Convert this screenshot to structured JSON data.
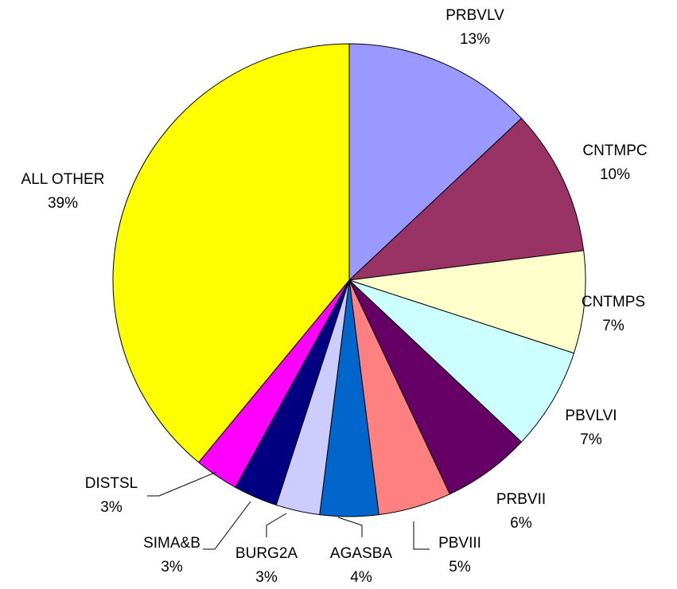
{
  "chart_data": {
    "type": "pie",
    "categories": [
      "PRBVLV",
      "CNTMPC",
      "CNTMPS",
      "PBVLVI",
      "PRBVII",
      "PBVIII",
      "AGASBA",
      "BURG2A",
      "SIMA&B",
      "DISTSL",
      "ALL OTHER"
    ],
    "values": [
      13,
      10,
      7,
      7,
      6,
      5,
      4,
      3,
      3,
      3,
      39
    ],
    "value_labels": [
      "13%",
      "10%",
      "7%",
      "7%",
      "6%",
      "5%",
      "4%",
      "3%",
      "3%",
      "3%",
      "39%"
    ],
    "colors": [
      "#9999ff",
      "#993366",
      "#ffffcc",
      "#ccffff",
      "#660066",
      "#ff8080",
      "#0066cc",
      "#ccccff",
      "#000080",
      "#ff00ff",
      "#ffff00"
    ]
  }
}
